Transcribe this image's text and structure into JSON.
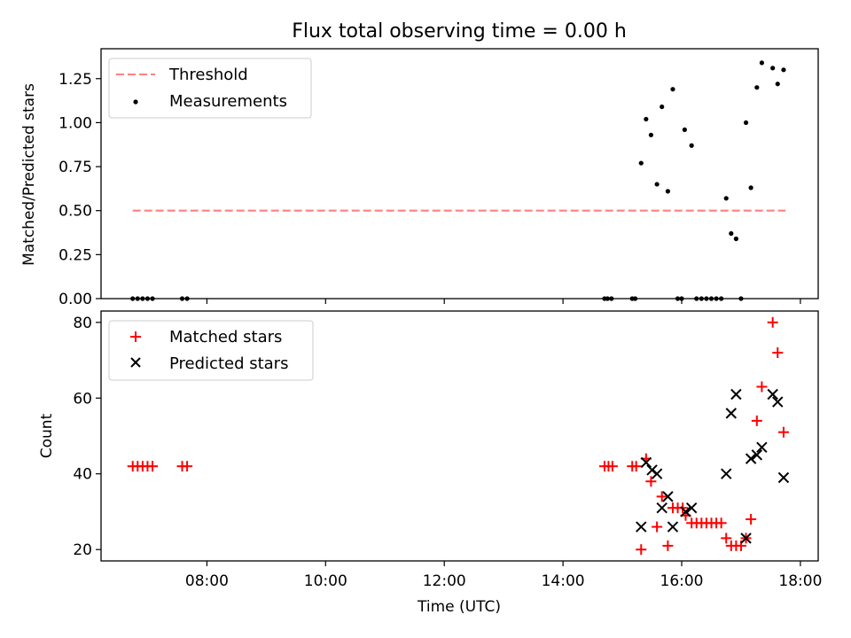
{
  "figure": {
    "title": "Flux total observing time = 0.00 h",
    "xlabel": "Time (UTC)"
  },
  "chart_data": [
    {
      "type": "scatter",
      "panel": "top",
      "ylabel": "Matched/Predicted stars",
      "xlim": [
        "06:13",
        "18:18"
      ],
      "ylim": [
        0,
        1.42
      ],
      "xticks": [
        "08:00",
        "10:00",
        "12:00",
        "14:00",
        "16:00",
        "18:00"
      ],
      "yticks": [
        "0.00",
        "0.25",
        "0.50",
        "0.75",
        "1.00",
        "1.25"
      ],
      "legend": {
        "position": "top-left",
        "entries": [
          "Threshold",
          "Measurements"
        ]
      },
      "threshold": {
        "name": "Threshold",
        "y": 0.5,
        "x_start": "06:45",
        "x_end": "17:45",
        "color": "#ff8080"
      },
      "series": [
        {
          "name": "Measurements",
          "marker": "dot",
          "color": "#000000",
          "points": [
            [
              "06:45",
              0
            ],
            [
              "06:50",
              0
            ],
            [
              "06:55",
              0
            ],
            [
              "07:00",
              0
            ],
            [
              "07:05",
              0
            ],
            [
              "07:35",
              0
            ],
            [
              "07:40",
              0
            ],
            [
              "14:42",
              0
            ],
            [
              "14:45",
              0
            ],
            [
              "14:49",
              0
            ],
            [
              "15:10",
              0
            ],
            [
              "15:13",
              0
            ],
            [
              "15:19",
              0.77
            ],
            [
              "15:24",
              1.02
            ],
            [
              "15:29",
              0.93
            ],
            [
              "15:35",
              0.65
            ],
            [
              "15:40",
              1.09
            ],
            [
              "15:46",
              0.61
            ],
            [
              "15:51",
              1.19
            ],
            [
              "15:56",
              0
            ],
            [
              "16:00",
              0
            ],
            [
              "16:03",
              0.96
            ],
            [
              "16:10",
              0.87
            ],
            [
              "16:15",
              0
            ],
            [
              "16:20",
              0
            ],
            [
              "16:25",
              0
            ],
            [
              "16:30",
              0
            ],
            [
              "16:35",
              0
            ],
            [
              "16:40",
              0
            ],
            [
              "16:45",
              0.57
            ],
            [
              "16:50",
              0.37
            ],
            [
              "16:55",
              0.34
            ],
            [
              "17:00",
              0
            ],
            [
              "17:05",
              1.0
            ],
            [
              "17:10",
              0.63
            ],
            [
              "17:16",
              1.2
            ],
            [
              "17:21",
              1.34
            ],
            [
              "17:32",
              1.31
            ],
            [
              "17:37",
              1.22
            ],
            [
              "17:43",
              1.3
            ]
          ]
        }
      ]
    },
    {
      "type": "scatter",
      "panel": "bottom",
      "ylabel": "Count",
      "xlim": [
        "06:13",
        "18:18"
      ],
      "ylim": [
        17,
        83
      ],
      "xticks": [
        "08:00",
        "10:00",
        "12:00",
        "14:00",
        "16:00",
        "18:00"
      ],
      "yticks": [
        "20",
        "40",
        "60",
        "80"
      ],
      "legend": {
        "position": "top-left",
        "entries": [
          "Matched stars",
          "Predicted stars"
        ]
      },
      "series": [
        {
          "name": "Matched stars",
          "marker": "plus",
          "color": "#ff0000",
          "points": [
            [
              "06:45",
              42
            ],
            [
              "06:50",
              42
            ],
            [
              "06:55",
              42
            ],
            [
              "07:00",
              42
            ],
            [
              "07:05",
              42
            ],
            [
              "07:35",
              42
            ],
            [
              "07:40",
              42
            ],
            [
              "14:42",
              42
            ],
            [
              "14:46",
              42
            ],
            [
              "14:50",
              42
            ],
            [
              "15:10",
              42
            ],
            [
              "15:14",
              42
            ],
            [
              "15:19",
              20
            ],
            [
              "15:24",
              44
            ],
            [
              "15:29",
              38
            ],
            [
              "15:35",
              26
            ],
            [
              "15:40",
              34
            ],
            [
              "15:46",
              21
            ],
            [
              "15:51",
              31
            ],
            [
              "15:56",
              31
            ],
            [
              "16:01",
              31
            ],
            [
              "16:04",
              29
            ],
            [
              "16:10",
              27
            ],
            [
              "16:15",
              27
            ],
            [
              "16:20",
              27
            ],
            [
              "16:25",
              27
            ],
            [
              "16:30",
              27
            ],
            [
              "16:35",
              27
            ],
            [
              "16:40",
              27
            ],
            [
              "16:45",
              23
            ],
            [
              "16:50",
              21
            ],
            [
              "16:55",
              21
            ],
            [
              "17:00",
              21
            ],
            [
              "17:05",
              23
            ],
            [
              "17:10",
              28
            ],
            [
              "17:16",
              54
            ],
            [
              "17:21",
              63
            ],
            [
              "17:32",
              80
            ],
            [
              "17:37",
              72
            ],
            [
              "17:43",
              51
            ]
          ]
        },
        {
          "name": "Predicted stars",
          "marker": "x",
          "color": "#000000",
          "points": [
            [
              "15:19",
              26
            ],
            [
              "15:24",
              43
            ],
            [
              "15:30",
              41
            ],
            [
              "15:35",
              40
            ],
            [
              "15:40",
              31
            ],
            [
              "15:46",
              34
            ],
            [
              "15:51",
              26
            ],
            [
              "16:04",
              30
            ],
            [
              "16:10",
              31
            ],
            [
              "16:45",
              40
            ],
            [
              "16:50",
              56
            ],
            [
              "16:55",
              61
            ],
            [
              "17:05",
              23
            ],
            [
              "17:10",
              44
            ],
            [
              "17:16",
              45
            ],
            [
              "17:21",
              47
            ],
            [
              "17:32",
              61
            ],
            [
              "17:37",
              59
            ],
            [
              "17:43",
              39
            ]
          ]
        }
      ]
    }
  ]
}
